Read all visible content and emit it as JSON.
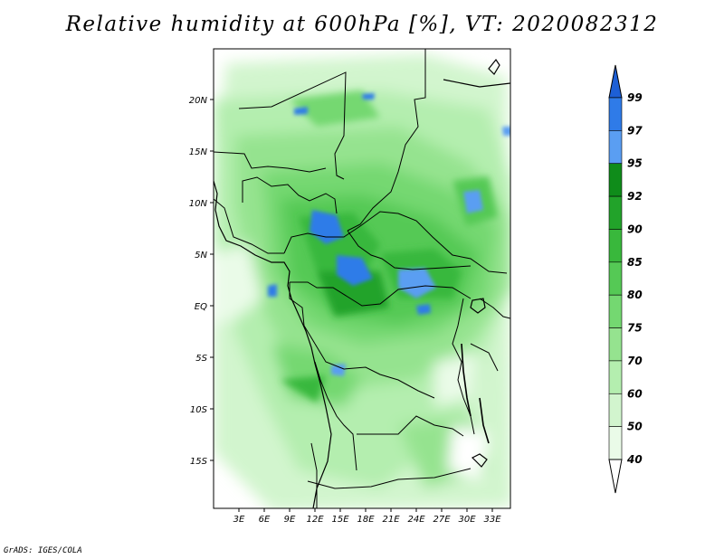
{
  "title": "Relative humidity at 600hPa [%], VT: 2020082312",
  "footer": "GrADS: IGES/COLA",
  "map": {
    "region": "Central Africa",
    "lon_range": [
      0,
      35
    ],
    "lat_range": [
      -20,
      24
    ],
    "lon_ticks": [
      "3E",
      "6E",
      "9E",
      "12E",
      "15E",
      "18E",
      "21E",
      "24E",
      "27E",
      "30E",
      "33E"
    ],
    "lat_ticks": [
      "20N",
      "15N",
      "10N",
      "5N",
      "EQ",
      "5S",
      "10S",
      "15S"
    ]
  },
  "colorbar": {
    "levels": [
      "99",
      "97",
      "95",
      "92",
      "90",
      "85",
      "80",
      "75",
      "70",
      "60",
      "50",
      "40"
    ],
    "colors": [
      "#1d5fd6",
      "#2f7be8",
      "#5a9ef2",
      "#0f8c1a",
      "#22a32a",
      "#39b83c",
      "#55c955",
      "#74d871",
      "#95e38f",
      "#b4eeaf",
      "#d2f5ce",
      "#eafbe8"
    ],
    "top_color": "#1d5fd6",
    "bottom_color": "#ffffff"
  }
}
